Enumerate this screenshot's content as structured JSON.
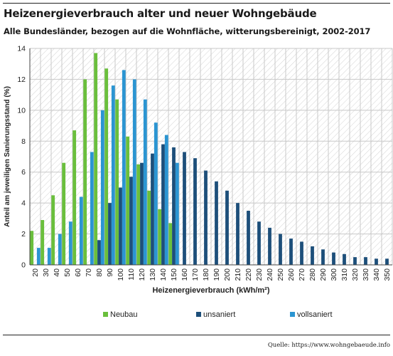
{
  "header": {
    "title": "Heizenergieverbrauch alter und neuer Wohngebäude",
    "subtitle": "Alle Bundesländer, bezogen auf die Wohnfläche, witterungsbereinigt, 2002-2017"
  },
  "footer": {
    "source": "Quelle: https://www.wohngebaeude.info"
  },
  "colors": {
    "Neubau": "#6abf3c",
    "unsaniert": "#1d4f7a",
    "vollsaniert": "#2b95d2",
    "grid": "#cfcfcf",
    "hatch": "#d5d5d5"
  },
  "chart_data": {
    "type": "bar",
    "title": "",
    "xlabel": "Heizenergieverbrauch (kWh/m²)",
    "ylabel": "Anteil am jeweiligen Sanierungsstand (%)",
    "ylim": [
      0,
      14
    ],
    "yticks": [
      0,
      2,
      4,
      6,
      8,
      10,
      12,
      14
    ],
    "grid": true,
    "legend_position": "bottom",
    "categories": [
      "20",
      "30",
      "40",
      "50",
      "60",
      "70",
      "80",
      "90",
      "100",
      "110",
      "120",
      "130",
      "140",
      "150",
      "160",
      "170",
      "180",
      "190",
      "200",
      "210",
      "220",
      "230",
      "240",
      "250",
      "260",
      "270",
      "280",
      "290",
      "300",
      "310",
      "320",
      "330",
      "340",
      "350"
    ],
    "series": [
      {
        "name": "Neubau",
        "color": "#6abf3c",
        "values": [
          2.2,
          2.9,
          4.5,
          6.6,
          8.7,
          12.0,
          13.7,
          12.7,
          10.7,
          8.3,
          6.5,
          4.8,
          3.6,
          2.7,
          null,
          null,
          null,
          null,
          null,
          null,
          null,
          null,
          null,
          null,
          null,
          null,
          null,
          null,
          null,
          null,
          null,
          null,
          null,
          null
        ]
      },
      {
        "name": "unsaniert",
        "color": "#1d4f7a",
        "values": [
          null,
          null,
          null,
          null,
          null,
          null,
          1.6,
          4.0,
          5.0,
          5.7,
          6.6,
          7.2,
          7.8,
          7.6,
          7.3,
          6.9,
          6.1,
          5.4,
          4.8,
          4.0,
          3.5,
          2.8,
          2.4,
          2.0,
          1.7,
          1.5,
          1.2,
          1.0,
          0.8,
          0.7,
          0.5,
          0.5,
          0.4,
          0.4
        ]
      },
      {
        "name": "vollsaniert",
        "color": "#2b95d2",
        "values": [
          1.1,
          1.1,
          2.0,
          2.8,
          4.4,
          7.3,
          10.0,
          11.6,
          12.6,
          12.0,
          10.7,
          9.2,
          8.4,
          6.6,
          null,
          null,
          null,
          null,
          null,
          null,
          null,
          null,
          null,
          null,
          null,
          null,
          null,
          null,
          null,
          null,
          null,
          null,
          null,
          null
        ]
      }
    ]
  }
}
